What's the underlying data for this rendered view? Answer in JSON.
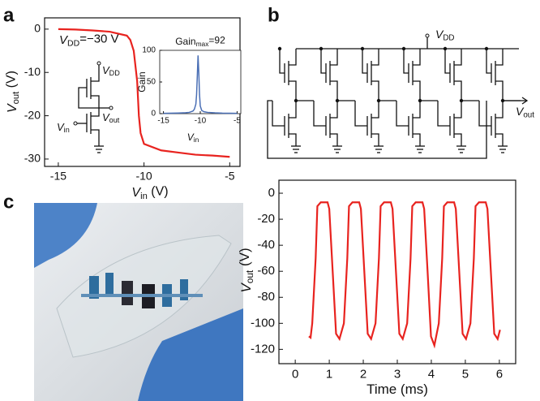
{
  "panel_labels": [
    "a",
    "b",
    "c"
  ],
  "chart_data": [
    {
      "type": "line",
      "color": "#e8231f",
      "x": [
        -15,
        -14,
        -13,
        -12,
        -11,
        -10.8,
        -10.6,
        -10.4,
        -10.3,
        -10.2,
        -10,
        -9,
        -8,
        -7,
        -6,
        -5
      ],
      "y": [
        0,
        -0.1,
        -0.3,
        -0.6,
        -1.5,
        -2.5,
        -5,
        -12,
        -20,
        -24,
        -26.5,
        -28,
        -28.5,
        -29,
        -29.2,
        -29.5
      ],
      "xlim": [
        -15.8,
        -4.4
      ],
      "ylim": [
        -31.7,
        2.6
      ],
      "xticks": [
        -15,
        -10,
        -5
      ],
      "yticks": [
        0,
        -10,
        -20,
        -30
      ],
      "xlabel": {
        "parts": [
          "V",
          "in",
          " (V)"
        ],
        "italic": true
      },
      "ylabel": {
        "parts": [
          "V",
          "out",
          " (V)"
        ],
        "italic": true
      },
      "annotation": {
        "parts": [
          "V",
          "DD",
          "=−30 V"
        ],
        "italic": true
      }
    },
    {
      "type": "line",
      "color": "#4a6fb5",
      "x": [
        -15,
        -13,
        -12,
        -11.5,
        -11,
        -10.8,
        -10.6,
        -10.5,
        -10.4,
        -10.3,
        -10.2,
        -10.1,
        -10,
        -9.8,
        -9.5,
        -9,
        -8,
        -7,
        -5
      ],
      "y": [
        0.5,
        1,
        1.5,
        2,
        4,
        7,
        15,
        30,
        60,
        92,
        65,
        30,
        12,
        5,
        3,
        2,
        1.2,
        0.8,
        0.5
      ],
      "xlim": [
        -15.5,
        -4.5
      ],
      "ylim": [
        0,
        100
      ],
      "xticks": [
        -15,
        -10,
        -5
      ],
      "yticks": [
        0,
        50,
        100
      ],
      "title": {
        "parts": [
          "Gain",
          "max",
          "=92"
        ],
        "italic": false
      },
      "xlabel": {
        "parts": [
          "V",
          "in"
        ],
        "italic": true
      },
      "ylabel": {
        "parts": [
          "Gain"
        ],
        "italic": false
      }
    },
    {
      "type": "line",
      "color": "#e8231f",
      "x": [
        0.4,
        0.45,
        0.5,
        0.6,
        0.65,
        0.75,
        0.95,
        1.0,
        1.1,
        1.2,
        1.3,
        1.43,
        1.53,
        1.58,
        1.68,
        1.88,
        1.93,
        2.03,
        2.13,
        2.23,
        2.36,
        2.46,
        2.51,
        2.61,
        2.81,
        2.86,
        2.96,
        3.06,
        3.16,
        3.29,
        3.39,
        3.44,
        3.54,
        3.74,
        3.79,
        3.89,
        3.99,
        4.09,
        4.22,
        4.32,
        4.37,
        4.47,
        4.67,
        4.72,
        4.82,
        4.92,
        5.02,
        5.15,
        5.25,
        5.3,
        5.4,
        5.6,
        5.65,
        5.75,
        5.85,
        5.95,
        6.02
      ],
      "y": [
        -110,
        -111,
        -100,
        -50,
        -10,
        -7,
        -7,
        -12,
        -60,
        -108,
        -112,
        -100,
        -50,
        -10,
        -7,
        -7,
        -12,
        -60,
        -108,
        -112,
        -100,
        -50,
        -10,
        -7,
        -7,
        -12,
        -60,
        -108,
        -112,
        -100,
        -50,
        -10,
        -7,
        -7,
        -12,
        -60,
        -110,
        -117,
        -100,
        -50,
        -10,
        -7,
        -7,
        -12,
        -60,
        -108,
        -112,
        -100,
        -50,
        -10,
        -7,
        -7,
        -12,
        -60,
        -108,
        -112,
        -105
      ],
      "xlim": [
        -0.48,
        6.48
      ],
      "ylim": [
        -131,
        10
      ],
      "xticks": [
        0,
        1,
        2,
        3,
        4,
        5,
        6
      ],
      "yticks": [
        0,
        -20,
        -40,
        -60,
        -80,
        -100,
        -120
      ],
      "xlabel": {
        "parts": [
          "Time (ms)"
        ],
        "italic": false
      },
      "ylabel": {
        "parts": [
          "V",
          "out",
          " (V)"
        ],
        "italic": true
      }
    }
  ],
  "schematic_a": {
    "vdd": {
      "parts": [
        "V",
        "DD"
      ],
      "italic": true
    },
    "vout": {
      "parts": [
        "V",
        "out"
      ],
      "italic": true
    },
    "vin": {
      "parts": [
        "V",
        "in"
      ],
      "italic": true
    }
  },
  "circuit_b": {
    "vdd": {
      "parts": [
        "V",
        "DD"
      ],
      "italic": true
    },
    "vout": {
      "parts": [
        "V",
        "out"
      ],
      "italic": true
    }
  }
}
